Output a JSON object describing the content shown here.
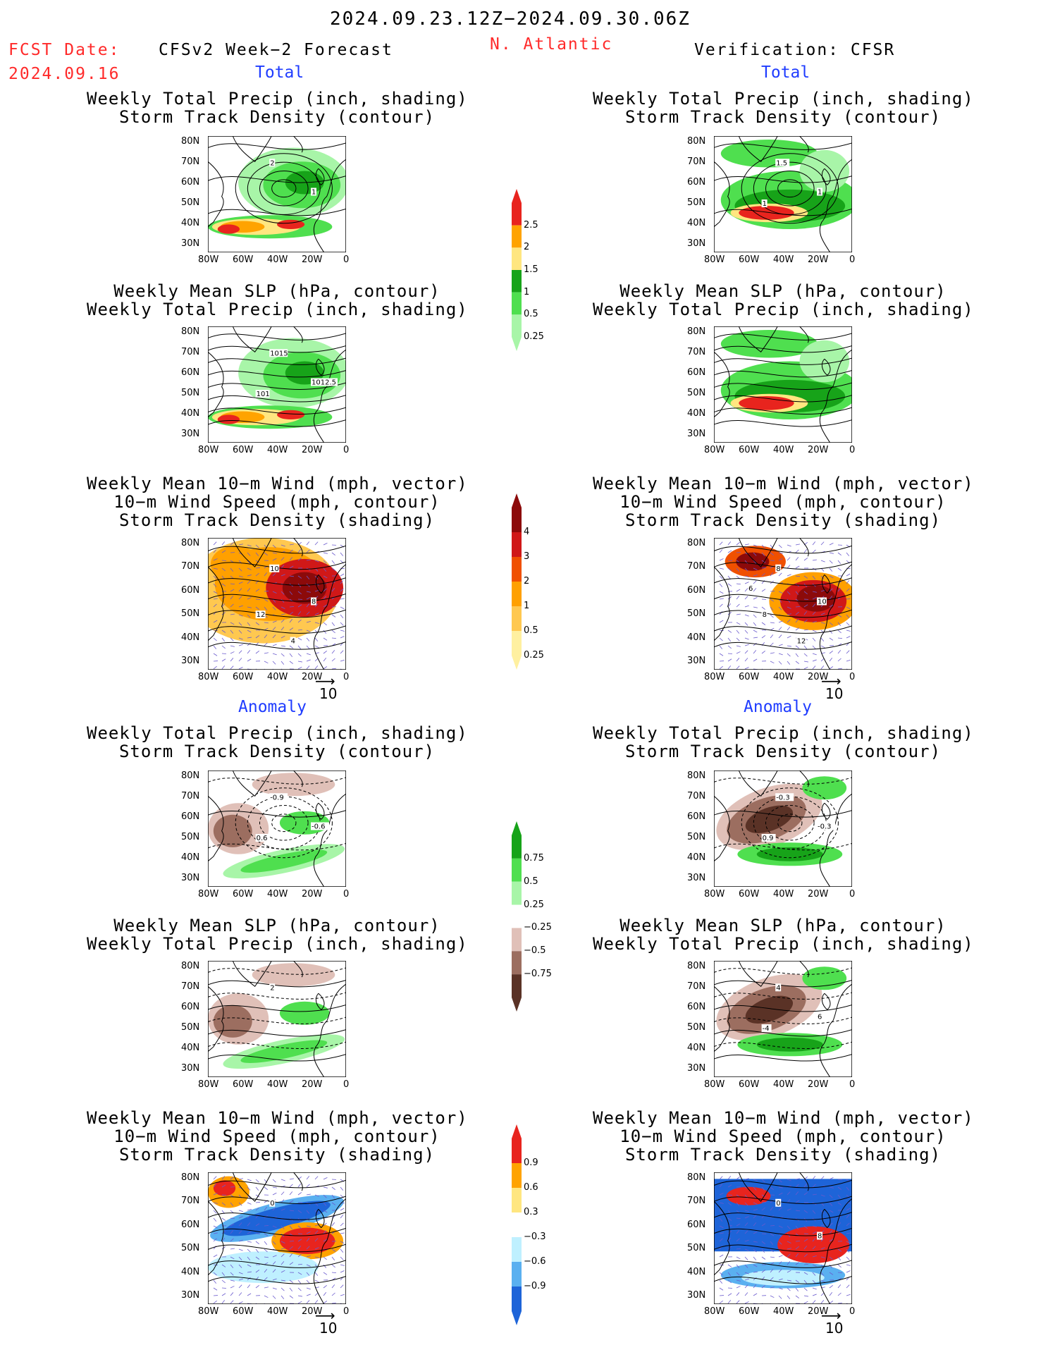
{
  "header": {
    "date_range": "2024.09.23.12Z−2024.09.30.06Z",
    "fcst_label": "FCST Date:",
    "fcst_date": "2024.09.16",
    "left_title": "CFSv2 Week−2 Forecast",
    "region": "N. Atlantic",
    "right_title": "Verification: CFSR"
  },
  "sections": {
    "total": "Total",
    "anomaly": "Anomaly"
  },
  "panel_titles": {
    "precip_storm": [
      "Weekly Total Precip (inch, shading)",
      "Storm Track Density (contour)"
    ],
    "slp_precip": [
      "Weekly Mean SLP (hPa, contour)",
      "Weekly Total Precip (inch, shading)"
    ],
    "wind_storm": [
      "Weekly Mean 10−m Wind (mph, vector)",
      "10−m Wind Speed (mph, contour)",
      "Storm Track Density (shading)"
    ]
  },
  "axes": {
    "lat_ticks": [
      "80N",
      "70N",
      "60N",
      "50N",
      "40N",
      "30N"
    ],
    "lon_ticks": [
      "80W",
      "60W",
      "40W",
      "20W",
      "0"
    ]
  },
  "vector_ref": "10",
  "colorbars": [
    {
      "labels": [
        "2.5",
        "2",
        "1.5",
        "1",
        "0.5",
        "0.25"
      ],
      "colors": [
        "#e8241e",
        "#ffa300",
        "#ffe680",
        "#17a319",
        "#4fdf4f",
        "#a8f5a8"
      ]
    },
    {
      "labels": [
        "4",
        "3",
        "2",
        "1",
        "0.5",
        "0.25"
      ],
      "colors": [
        "#8c0a0a",
        "#d01818",
        "#f05000",
        "#ffa000",
        "#ffc850",
        "#fff0a0"
      ]
    },
    {
      "labels": [
        "0.75",
        "0.5",
        "0.25",
        "−0.25",
        "−0.5",
        "−0.75"
      ],
      "colors": [
        "#17a319",
        "#4fdf4f",
        "#a8f5a8",
        "#ffffff",
        "#e0c0b8",
        "#9c6e60",
        "#5a3226"
      ]
    },
    {
      "labels": [
        "0.9",
        "0.6",
        "0.3",
        "−0.3",
        "−0.6",
        "−0.9"
      ],
      "colors": [
        "#e8241e",
        "#ffa300",
        "#ffe680",
        "#ffffff",
        "#bff0ff",
        "#5ab0f0",
        "#1e64d8"
      ]
    }
  ],
  "contour_labels": {
    "f_total_precip": [
      "2",
      "1"
    ],
    "v_total_precip": [
      "1.5",
      "1",
      "1"
    ],
    "f_total_slp": [
      "1015",
      "1012.5",
      "101"
    ],
    "f_total_wind": [
      "10",
      "8",
      "12",
      "4"
    ],
    "v_total_wind": [
      "8",
      "10",
      "8",
      "12",
      "6"
    ],
    "f_anom_precip": [
      "-0.9",
      "-0.6",
      "0.6"
    ],
    "v_anom_precip": [
      "-0.3",
      "-0.3",
      "0.9"
    ],
    "f_anom_slp": [
      "2"
    ],
    "v_anom_slp": [
      "4",
      "6",
      "-4"
    ],
    "f_anom_wind": [
      "0"
    ],
    "v_anom_wind": [
      "0",
      "8"
    ]
  },
  "colors": {
    "accent_red": "#ff2a2a",
    "section_blue": "#1f3cff"
  }
}
